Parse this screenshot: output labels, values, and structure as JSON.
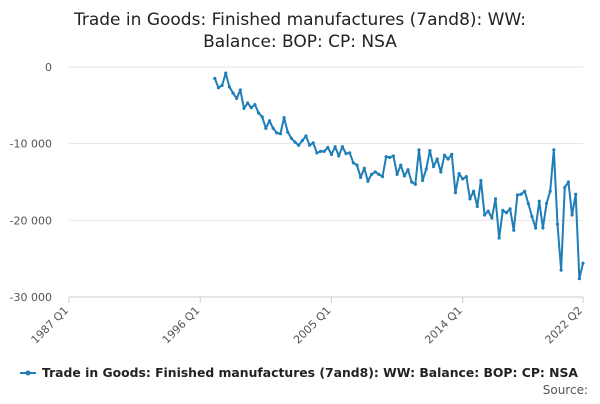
{
  "chart_data": {
    "type": "line",
    "title_lines": [
      "Trade in Goods: Finished manufactures (7and8): WW:",
      "Balance: BOP: CP: NSA"
    ],
    "xlabel": "",
    "ylabel": "",
    "x_range": [
      "1987 Q1",
      "2022 Q2"
    ],
    "ylim": [
      -30000,
      0
    ],
    "y_ticks": [
      0,
      -10000,
      -20000,
      -30000
    ],
    "y_tick_labels": [
      "0",
      "-10 000",
      "-20 000",
      "-30 000"
    ],
    "x_ticks": [
      "1987 Q1",
      "1996 Q1",
      "2005 Q1",
      "2014 Q1",
      "2022 Q2"
    ],
    "grid": true,
    "legend_position": "bottom",
    "source_label": "Source:",
    "series": [
      {
        "name": "Trade in Goods: Finished manufactures (7and8): WW: Balance: BOP: CP: NSA",
        "color": "#1f7db8",
        "x": [
          "1997 Q1",
          "1997 Q2",
          "1997 Q3",
          "1997 Q4",
          "1998 Q1",
          "1998 Q2",
          "1998 Q3",
          "1998 Q4",
          "1999 Q1",
          "1999 Q2",
          "1999 Q3",
          "1999 Q4",
          "2000 Q1",
          "2000 Q2",
          "2000 Q3",
          "2000 Q4",
          "2001 Q1",
          "2001 Q2",
          "2001 Q3",
          "2001 Q4",
          "2002 Q1",
          "2002 Q2",
          "2002 Q3",
          "2002 Q4",
          "2003 Q1",
          "2003 Q2",
          "2003 Q3",
          "2003 Q4",
          "2004 Q1",
          "2004 Q2",
          "2004 Q3",
          "2004 Q4",
          "2005 Q1",
          "2005 Q2",
          "2005 Q3",
          "2005 Q4",
          "2006 Q1",
          "2006 Q2",
          "2006 Q3",
          "2006 Q4",
          "2007 Q1",
          "2007 Q2",
          "2007 Q3",
          "2007 Q4",
          "2008 Q1",
          "2008 Q2",
          "2008 Q3",
          "2008 Q4",
          "2009 Q1",
          "2009 Q2",
          "2009 Q3",
          "2009 Q4",
          "2010 Q1",
          "2010 Q2",
          "2010 Q3",
          "2010 Q4",
          "2011 Q1",
          "2011 Q2",
          "2011 Q3",
          "2011 Q4",
          "2012 Q1",
          "2012 Q2",
          "2012 Q3",
          "2012 Q4",
          "2013 Q1",
          "2013 Q2",
          "2013 Q3",
          "2013 Q4",
          "2014 Q1",
          "2014 Q2",
          "2014 Q3",
          "2014 Q4",
          "2015 Q1",
          "2015 Q2",
          "2015 Q3",
          "2015 Q4",
          "2016 Q1",
          "2016 Q2",
          "2016 Q3",
          "2016 Q4",
          "2017 Q1",
          "2017 Q2",
          "2017 Q3",
          "2017 Q4",
          "2018 Q1",
          "2018 Q2",
          "2018 Q3",
          "2018 Q4",
          "2019 Q1",
          "2019 Q2",
          "2019 Q3",
          "2019 Q4",
          "2020 Q1",
          "2020 Q2",
          "2020 Q3",
          "2020 Q4",
          "2021 Q1",
          "2021 Q2",
          "2021 Q3",
          "2021 Q4",
          "2022 Q1",
          "2022 Q2"
        ],
        "values": [
          -1500,
          -2700,
          -2400,
          -800,
          -2600,
          -3400,
          -4100,
          -3000,
          -5400,
          -4700,
          -5300,
          -4900,
          -6000,
          -6500,
          -8000,
          -7000,
          -8000,
          -8600,
          -8700,
          -6600,
          -8500,
          -9300,
          -9800,
          -10200,
          -9600,
          -9000,
          -10200,
          -9900,
          -11200,
          -11000,
          -11000,
          -10500,
          -11400,
          -10400,
          -11600,
          -10400,
          -11300,
          -11200,
          -12500,
          -12800,
          -14400,
          -13200,
          -14900,
          -14000,
          -13700,
          -14000,
          -14300,
          -11700,
          -11800,
          -11600,
          -14000,
          -12800,
          -14200,
          -13400,
          -15000,
          -15300,
          -10800,
          -14800,
          -13300,
          -10900,
          -13000,
          -12000,
          -13700,
          -11500,
          -12000,
          -11400,
          -16400,
          -13900,
          -14600,
          -14300,
          -17200,
          -16200,
          -18200,
          -14800,
          -19300,
          -18800,
          -19700,
          -17200,
          -22300,
          -18700,
          -19000,
          -18500,
          -21300,
          -16700,
          -16600,
          -16200,
          -17800,
          -19500,
          -21000,
          -17500,
          -21000,
          -17800,
          -16200,
          -10800,
          -20500,
          -26500,
          -15700,
          -15000,
          -19300,
          -16600,
          -27600,
          -25600
        ]
      }
    ]
  }
}
